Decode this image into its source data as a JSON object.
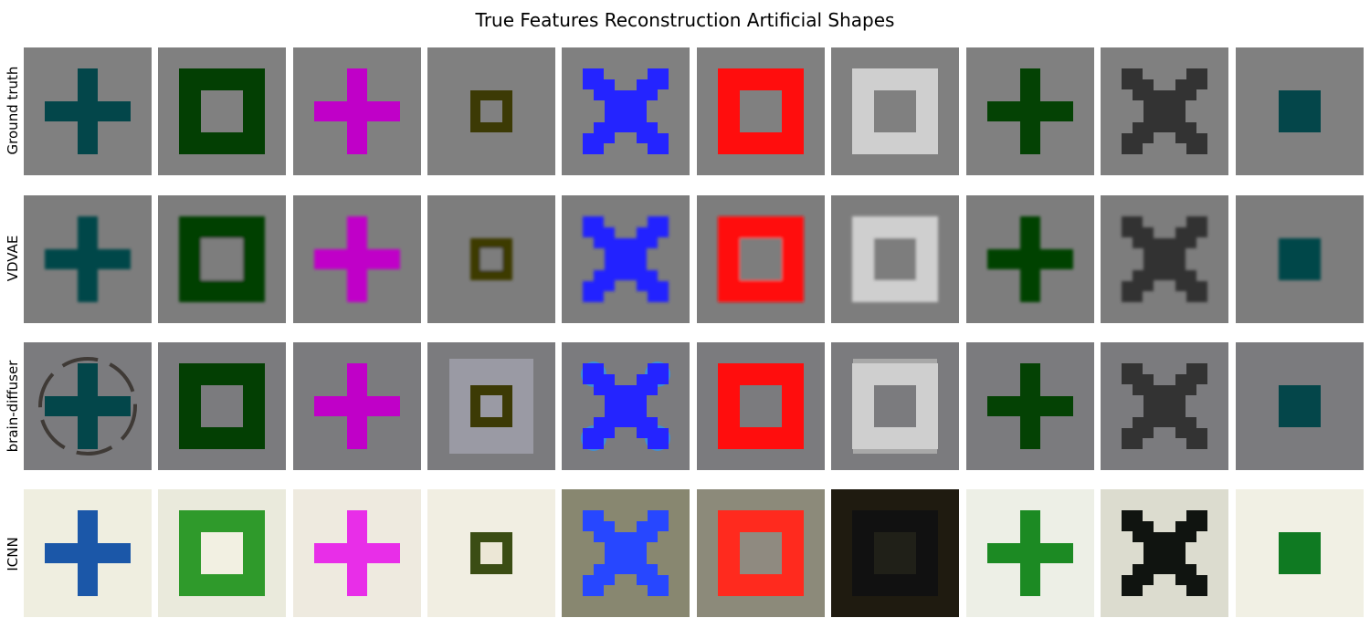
{
  "title": "True Features Reconstruction Artificial Shapes",
  "rows": [
    {
      "label": "Ground truth"
    },
    {
      "label": "VDVAE"
    },
    {
      "label": "brain-diffuser"
    },
    {
      "label": "ICNN"
    }
  ],
  "columns": [
    {
      "shape": "plus",
      "color": "#03464a",
      "size": "large"
    },
    {
      "shape": "frame",
      "color": "#033f03",
      "size": "large"
    },
    {
      "shape": "plus",
      "color": "#c000c8",
      "size": "large"
    },
    {
      "shape": "frame",
      "color": "#3c3a05",
      "size": "small"
    },
    {
      "shape": "x",
      "color": "#2424ff",
      "size": "large"
    },
    {
      "shape": "frame",
      "color": "#ff0d0d",
      "size": "large"
    },
    {
      "shape": "frame",
      "color": "#cfcfcf",
      "size": "large"
    },
    {
      "shape": "plus",
      "color": "#044204",
      "size": "large"
    },
    {
      "shape": "x",
      "color": "#333333",
      "size": "large"
    },
    {
      "shape": "square",
      "color": "#04464a",
      "size": "small"
    }
  ],
  "row_styles": {
    "ground_truth": {
      "background": "#808080"
    },
    "vdvae": {
      "background": "#7d7d7d",
      "blur": true
    },
    "brain_diffuser": {
      "background": "#7b7b7e"
    },
    "icnn": {
      "background": "#e6e6dc",
      "tints": [
        "#1b57a8",
        "#2f9a2b",
        "#e82ee8",
        "#3b4d14",
        "#2747ff",
        "#ff2a1e",
        "#111111",
        "#1c8a23",
        "#101410",
        "#0f7a22"
      ],
      "tile_backgrounds": [
        "#efeee0",
        "#eaeadc",
        "#eeeadf",
        "#f1eee2",
        "#888770",
        "#8c8a7a",
        "#1f1b10",
        "#edefe6",
        "#dcdccf",
        "#f1f0e4"
      ],
      "frame_holes": [
        "",
        "#f2f0e2",
        "",
        "#ece7d6",
        "",
        "#8f8a80",
        "#202018",
        "",
        "",
        ""
      ]
    }
  }
}
